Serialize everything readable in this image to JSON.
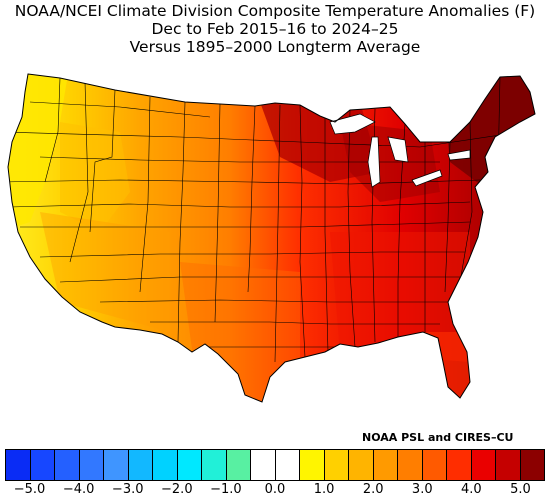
{
  "title": {
    "line1": "NOAA/NCEI Climate Division Composite Temperature Anomalies (F)",
    "line2": "Dec to Feb 2015–16 to 2024–25",
    "line3": "Versus 1895–2000 Longterm Average"
  },
  "credit": "NOAA PSL and CIRES–CU",
  "legend": {
    "ticks": [
      "−5.0",
      "−4.0",
      "−3.0",
      "−2.0",
      "−1.0",
      "0.0",
      "1.0",
      "2.0",
      "3.0",
      "4.0",
      "5.0"
    ],
    "min": -5.0,
    "max": 5.0,
    "step": 0.5,
    "colors": [
      "#0a2cf5",
      "#1747ff",
      "#2460ff",
      "#3278ff",
      "#3f95ff",
      "#12b8ff",
      "#00d2ff",
      "#00e8ff",
      "#21f0d8",
      "#58f0a2",
      "#ffffff",
      "#ffffff",
      "#fff500",
      "#ffd000",
      "#ffb400",
      "#ff9a00",
      "#ff7e00",
      "#ff5a00",
      "#ff2d00",
      "#ea0000",
      "#c50000",
      "#8c0000"
    ]
  }
}
